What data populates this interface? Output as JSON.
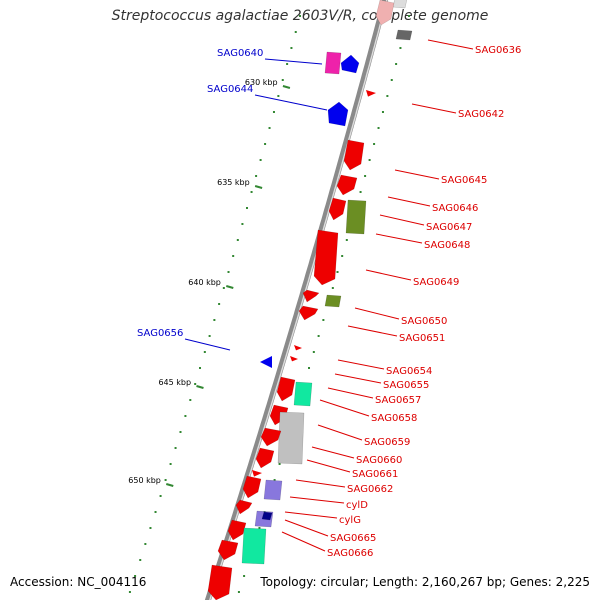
{
  "title": "Streptococcus agalactiae 2603V/R, complete genome",
  "footer": {
    "accession": "Accession: NC_004116",
    "summary": "Topology: circular; Length: 2,160,267 bp; Genes: 2,225"
  },
  "colors": {
    "forward_label": "#0000cc",
    "reverse_label": "#dd0000",
    "backbone": "#888888",
    "ticks": "#338833",
    "red": "#ee0000",
    "blue": "#0000ee",
    "magenta": "#ee22aa",
    "olive": "#6b8e23",
    "teal": "#11e8a0",
    "grey": "#c0c0c0",
    "purple": "#8877dd",
    "navy": "#000088"
  },
  "ticks": [
    {
      "label": "630 kbp"
    },
    {
      "label": "635 kbp"
    },
    {
      "label": "640 kbp"
    },
    {
      "label": "645 kbp"
    },
    {
      "label": "650 kbp"
    }
  ],
  "genes": [
    {
      "label": "SAG0636",
      "color": "grey"
    },
    {
      "label": "SAG0640",
      "color": "magenta"
    },
    {
      "label": "SAG0644",
      "color": "blue"
    },
    {
      "label": "SAG0642",
      "color": "red"
    },
    {
      "label": "SAG0645",
      "color": "red"
    },
    {
      "label": "SAG0646",
      "color": "red"
    },
    {
      "label": "SAG0647",
      "color": "olive"
    },
    {
      "label": "SAG0648",
      "color": "red"
    },
    {
      "label": "SAG0649",
      "color": "red"
    },
    {
      "label": "SAG0650",
      "color": "olive"
    },
    {
      "label": "SAG0651",
      "color": "red"
    },
    {
      "label": "SAG0656",
      "color": "blue"
    },
    {
      "label": "SAG0654",
      "color": "red"
    },
    {
      "label": "SAG0655",
      "color": "red"
    },
    {
      "label": "SAG0657",
      "color": "teal"
    },
    {
      "label": "SAG0658",
      "color": "red"
    },
    {
      "label": "SAG0659",
      "color": "grey"
    },
    {
      "label": "SAG0660",
      "color": "red"
    },
    {
      "label": "SAG0661",
      "color": "red"
    },
    {
      "label": "SAG0662",
      "color": "red"
    },
    {
      "label": "cylD",
      "color": "purple"
    },
    {
      "label": "cylG",
      "color": "navy"
    },
    {
      "label": "SAG0665",
      "color": "red"
    },
    {
      "label": "SAG0666",
      "color": "teal"
    }
  ]
}
